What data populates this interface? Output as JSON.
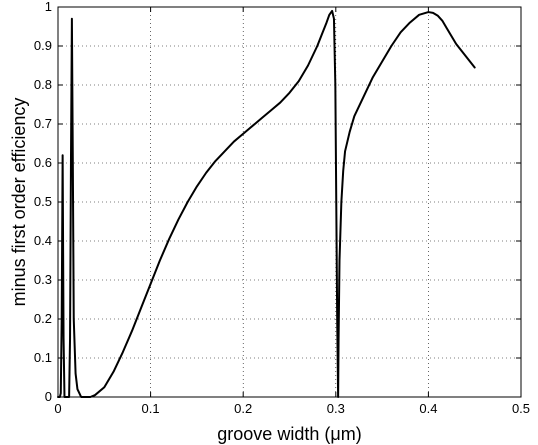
{
  "chart_data": {
    "type": "line",
    "xlabel": "groove width (μm)",
    "ylabel": "minus first order efficiency",
    "xlim": [
      0,
      0.5
    ],
    "ylim": [
      0,
      1
    ],
    "grid": true,
    "x_ticks": [
      0,
      0.1,
      0.2,
      0.3,
      0.4,
      0.5
    ],
    "x_tick_labels": [
      "0",
      "0.1",
      "0.2",
      "0.3",
      "0.4",
      "0.5"
    ],
    "y_ticks": [
      0,
      0.1,
      0.2,
      0.3,
      0.4,
      0.5,
      0.6,
      0.7,
      0.8,
      0.9,
      1
    ],
    "y_tick_labels": [
      "0",
      "0.1",
      "0.2",
      "0.3",
      "0.4",
      "0.5",
      "0.6",
      "0.7",
      "0.8",
      "0.9",
      "1"
    ],
    "series": [
      {
        "x": [
          0.0,
          0.002,
          0.003,
          0.004,
          0.005,
          0.006,
          0.007,
          0.009,
          0.011,
          0.012,
          0.013,
          0.014,
          0.015,
          0.016,
          0.017,
          0.019,
          0.021,
          0.023,
          0.025,
          0.028,
          0.031,
          0.035,
          0.04,
          0.05,
          0.06,
          0.07,
          0.08,
          0.09,
          0.1,
          0.11,
          0.12,
          0.13,
          0.14,
          0.15,
          0.16,
          0.17,
          0.18,
          0.19,
          0.2,
          0.21,
          0.22,
          0.23,
          0.24,
          0.25,
          0.26,
          0.27,
          0.28,
          0.285,
          0.29,
          0.293,
          0.296,
          0.298,
          0.2995,
          0.3005,
          0.3015,
          0.3025,
          0.303,
          0.304,
          0.306,
          0.308,
          0.31,
          0.315,
          0.32,
          0.33,
          0.34,
          0.35,
          0.36,
          0.37,
          0.38,
          0.39,
          0.4,
          0.405,
          0.41,
          0.415,
          0.42,
          0.425,
          0.43,
          0.44,
          0.45
        ],
        "y": [
          0.0,
          0.0,
          0.01,
          0.2,
          0.62,
          0.15,
          0.0,
          0.0,
          0.0,
          0.0,
          0.15,
          0.6,
          0.97,
          0.6,
          0.2,
          0.06,
          0.02,
          0.01,
          0.0,
          0.0,
          0.0,
          0.0,
          0.005,
          0.025,
          0.065,
          0.115,
          0.17,
          0.23,
          0.29,
          0.35,
          0.405,
          0.455,
          0.5,
          0.54,
          0.575,
          0.605,
          0.63,
          0.655,
          0.675,
          0.695,
          0.715,
          0.735,
          0.755,
          0.78,
          0.81,
          0.85,
          0.9,
          0.93,
          0.96,
          0.98,
          0.99,
          0.97,
          0.8,
          0.5,
          0.2,
          0.0,
          0.15,
          0.35,
          0.5,
          0.58,
          0.63,
          0.68,
          0.72,
          0.77,
          0.82,
          0.86,
          0.9,
          0.935,
          0.96,
          0.98,
          0.987,
          0.985,
          0.978,
          0.965,
          0.945,
          0.925,
          0.905,
          0.875,
          0.845
        ]
      }
    ]
  }
}
